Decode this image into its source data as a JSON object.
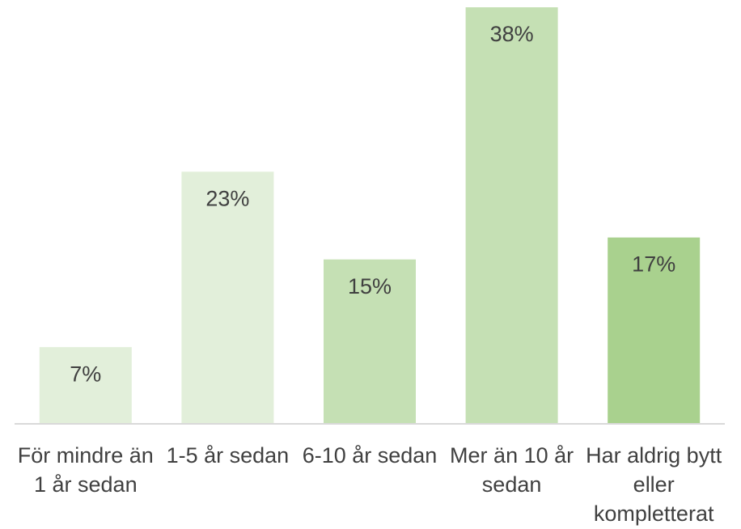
{
  "chart_data": {
    "type": "bar",
    "categories": [
      "För mindre än 1 år sedan",
      "1-5 år sedan",
      "6-10 år sedan",
      "Mer än 10 år sedan",
      "Har aldrig bytt eller kompletterat"
    ],
    "values": [
      7,
      23,
      15,
      38,
      17
    ],
    "value_labels": [
      "7%",
      "23%",
      "15%",
      "38%",
      "17%"
    ],
    "colors": [
      "#e2efda",
      "#e2efda",
      "#c5e0b4",
      "#c5e0b4",
      "#a9d18e"
    ],
    "ylim": [
      0,
      38
    ]
  }
}
